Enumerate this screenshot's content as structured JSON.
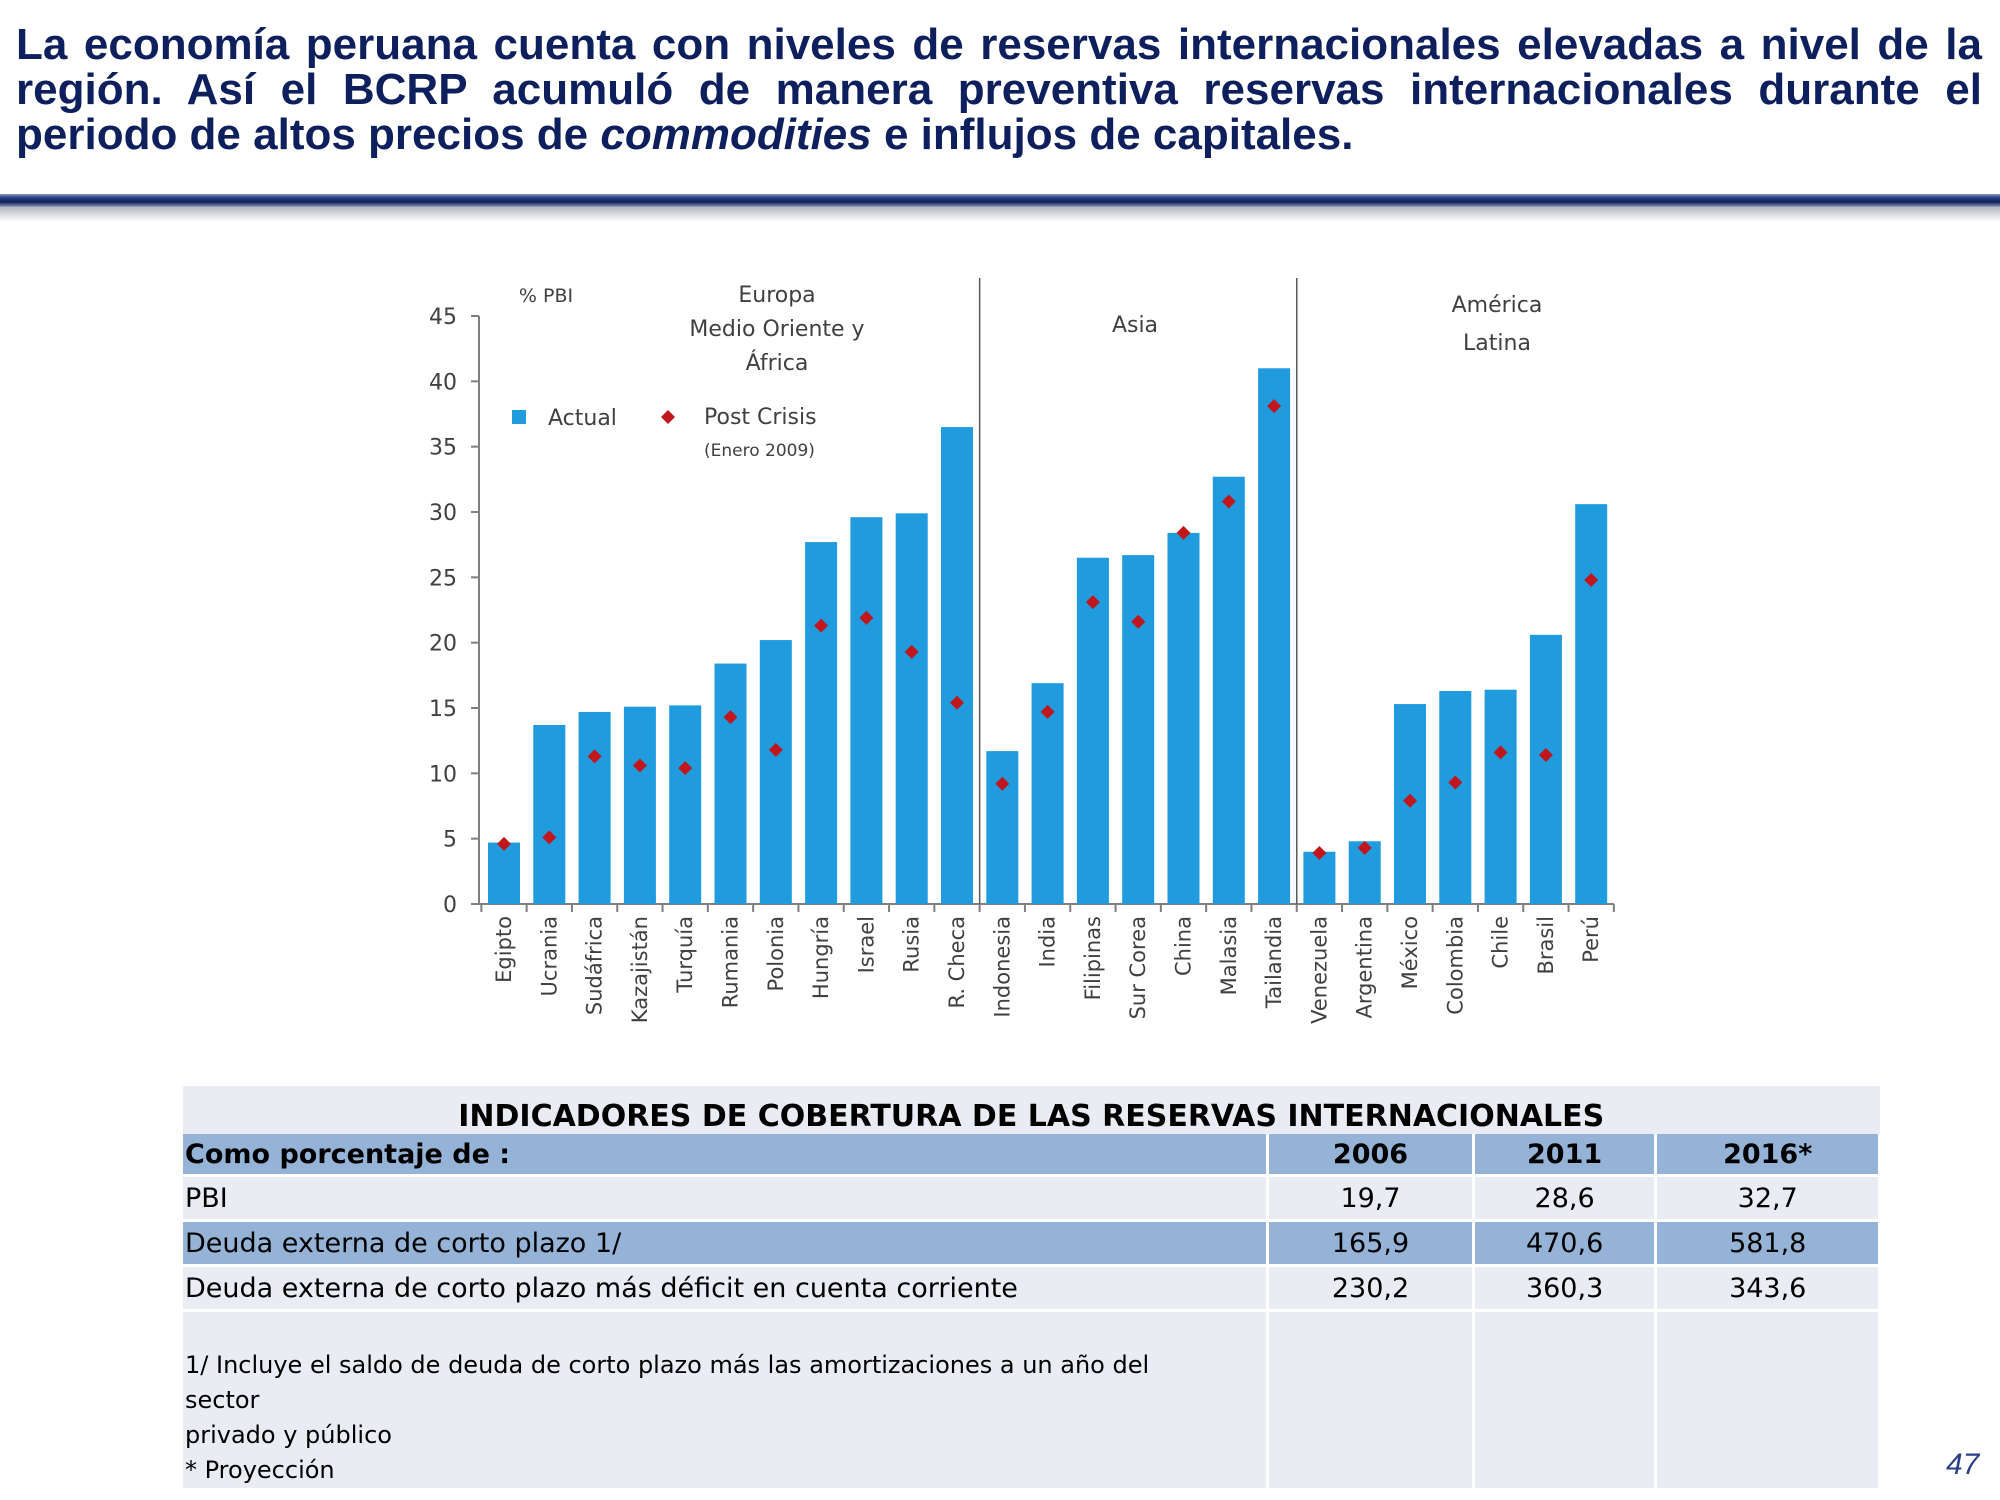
{
  "slide": {
    "title_part1": "La economía peruana cuenta con niveles de reservas internacionales elevadas a nivel de la región. Así el BCRP acumuló de manera preventiva reservas internacionales durante el periodo de altos precios de ",
    "title_italic": "commodities",
    "title_part2": " e influjos de capitales.",
    "page_number": "47"
  },
  "chart_data": {
    "type": "bar",
    "ylabel": "% PBI",
    "ylim": [
      0,
      45
    ],
    "yticks": [
      0,
      5,
      10,
      15,
      20,
      25,
      30,
      35,
      40,
      45
    ],
    "categories": [
      "Egipto",
      "Ucrania",
      "Sudáfrica",
      "Kazajistán",
      "Turquía",
      "Rumania",
      "Polonia",
      "Hungría",
      "Israel",
      "Rusia",
      "R. Checa",
      "Indonesia",
      "India",
      "Filipinas",
      "Sur Corea",
      "China",
      "Malasia",
      "Tailandia",
      "Venezuela",
      "Argentina",
      "México",
      "Colombia",
      "Chile",
      "Brasil",
      "Perú"
    ],
    "series": [
      {
        "name": "Actual",
        "kind": "bar",
        "color": "#1f9bde",
        "values": [
          4.7,
          13.7,
          14.7,
          15.1,
          15.2,
          18.4,
          20.2,
          27.7,
          29.6,
          29.9,
          36.5,
          11.7,
          16.9,
          26.5,
          26.7,
          28.4,
          32.7,
          41.0,
          4.0,
          4.8,
          15.3,
          16.3,
          16.4,
          20.6,
          30.6
        ]
      },
      {
        "name": "Post Crisis",
        "name_note": "(Enero 2009)",
        "kind": "marker",
        "color": "#c0161c",
        "values": [
          4.6,
          5.1,
          11.3,
          10.6,
          10.4,
          14.3,
          11.8,
          21.3,
          21.9,
          19.3,
          15.4,
          9.2,
          14.7,
          23.1,
          21.6,
          28.4,
          30.8,
          38.1,
          3.9,
          4.3,
          7.9,
          9.3,
          11.6,
          11.4,
          24.8
        ]
      }
    ],
    "groups": [
      {
        "label_lines": [
          "Europa",
          "Medio Oriente y",
          "África"
        ],
        "start": 0,
        "end": 10
      },
      {
        "label_lines": [
          "Asia"
        ],
        "start": 11,
        "end": 17
      },
      {
        "label_lines": [
          "América",
          "Latina"
        ],
        "start": 18,
        "end": 24
      }
    ],
    "legend_position": "top-left",
    "grid": false
  },
  "table": {
    "caption": "INDICADORES DE COBERTURA DE LAS RESERVAS INTERNACIONALES",
    "header": {
      "label": "Como porcentaje de :",
      "y1": "2006",
      "y2": "2011",
      "y3": "2016*"
    },
    "rows": [
      {
        "label": "PBI",
        "v1": "19,7",
        "v2": "28,6",
        "v3": "32,7"
      },
      {
        "label": "Deuda externa de corto plazo 1/",
        "v1": "165,9",
        "v2": "470,6",
        "v3": "581,8"
      },
      {
        "label": "Deuda externa de corto plazo más déficit en cuenta corriente",
        "v1": "230,2",
        "v2": "360,3",
        "v3": "343,6"
      }
    ],
    "notes": {
      "line1": "1/ Incluye el saldo de deuda de corto plazo más las amortizaciones a un año del sector",
      "line2": "privado y público",
      "line3": "* Proyección"
    }
  }
}
